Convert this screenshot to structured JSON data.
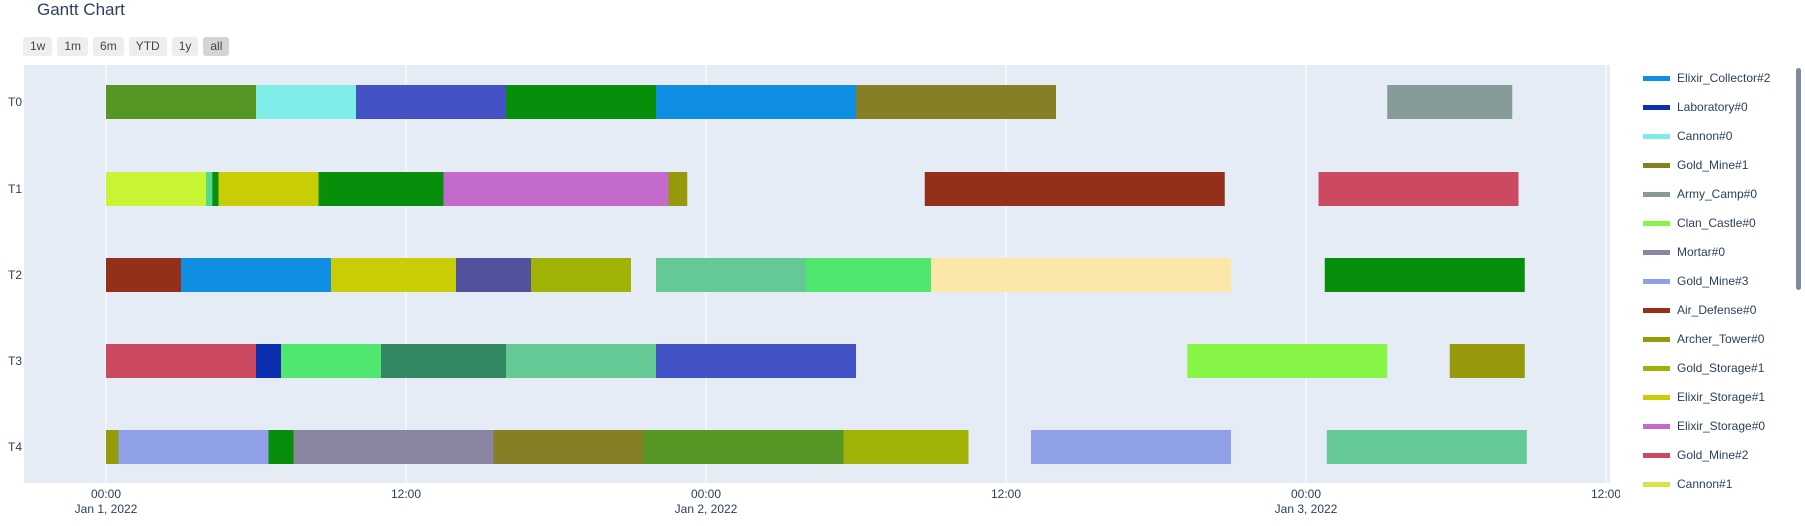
{
  "title": "Gantt Chart",
  "range_buttons": [
    {
      "label": "1w",
      "active": false
    },
    {
      "label": "1m",
      "active": false
    },
    {
      "label": "6m",
      "active": false
    },
    {
      "label": "YTD",
      "active": false
    },
    {
      "label": "1y",
      "active": false
    },
    {
      "label": "all",
      "active": true
    }
  ],
  "chart_data": {
    "type": "gantt",
    "title": "Gantt Chart",
    "x_range": [
      "2022-01-01T00:00",
      "2022-01-03T12:00"
    ],
    "x_ticks": [
      {
        "value": "2022-01-01T00:00",
        "label": "00:00",
        "sublabel": "Jan 1, 2022"
      },
      {
        "value": "2022-01-01T12:00",
        "label": "12:00",
        "sublabel": ""
      },
      {
        "value": "2022-01-02T00:00",
        "label": "00:00",
        "sublabel": "Jan 2, 2022"
      },
      {
        "value": "2022-01-02T12:00",
        "label": "12:00",
        "sublabel": ""
      },
      {
        "value": "2022-01-03T00:00",
        "label": "00:00",
        "sublabel": "Jan 3, 2022"
      },
      {
        "value": "2022-01-03T12:00",
        "label": "12:00",
        "sublabel": ""
      }
    ],
    "y_categories": [
      "T0",
      "T1",
      "T2",
      "T3",
      "T4"
    ],
    "background": "#e5ecf6",
    "legend_position": "right",
    "legend": [
      {
        "name": "Elixir_Collector#2",
        "color": "#0f8fe3"
      },
      {
        "name": "Laboratory#0",
        "color": "#0c2eb0"
      },
      {
        "name": "Cannon#0",
        "color": "#7eece7"
      },
      {
        "name": "Gold_Mine#1",
        "color": "#857f25"
      },
      {
        "name": "Army_Camp#0",
        "color": "#869a98"
      },
      {
        "name": "Clan_Castle#0",
        "color": "#87f546"
      },
      {
        "name": "Mortar#0",
        "color": "#8a85a0"
      },
      {
        "name": "Gold_Mine#3",
        "color": "#8f9fe8"
      },
      {
        "name": "Air_Defense#0",
        "color": "#942f1a"
      },
      {
        "name": "Archer_Tower#0",
        "color": "#969a0a"
      },
      {
        "name": "Gold_Storage#1",
        "color": "#a0b206"
      },
      {
        "name": "Elixir_Storage#1",
        "color": "#c8cd06"
      },
      {
        "name": "Elixir_Storage#0",
        "color": "#c46acc"
      },
      {
        "name": "Gold_Mine#2",
        "color": "#cb4a62"
      },
      {
        "name": "Cannon#1",
        "color": "#d7e44a"
      }
    ],
    "tasks": [
      {
        "row": "T0",
        "start": "2022-01-01T00:00",
        "end": "2022-01-01T06:00",
        "color": "#559625"
      },
      {
        "row": "T0",
        "start": "2022-01-01T06:00",
        "end": "2022-01-01T10:00",
        "color": "#7eece7"
      },
      {
        "row": "T0",
        "start": "2022-01-01T10:00",
        "end": "2022-01-01T16:00",
        "color": "#4353c6"
      },
      {
        "row": "T0",
        "start": "2022-01-01T16:00",
        "end": "2022-01-01T22:00",
        "color": "#078e0b"
      },
      {
        "row": "T0",
        "start": "2022-01-01T22:00",
        "end": "2022-01-02T06:00",
        "color": "#0f8fe3"
      },
      {
        "row": "T0",
        "start": "2022-01-02T06:00",
        "end": "2022-01-02T14:00",
        "color": "#857f25"
      },
      {
        "row": "T0",
        "start": "2022-01-03T03:15",
        "end": "2022-01-03T08:15",
        "color": "#869a98"
      },
      {
        "row": "T1",
        "start": "2022-01-01T00:00",
        "end": "2022-01-01T04:00",
        "color": "#c8f533"
      },
      {
        "row": "T1",
        "start": "2022-01-01T04:00",
        "end": "2022-01-01T04:15",
        "color": "#55d98c"
      },
      {
        "row": "T1",
        "start": "2022-01-01T04:15",
        "end": "2022-01-01T04:30",
        "color": "#078e0b"
      },
      {
        "row": "T1",
        "start": "2022-01-01T04:30",
        "end": "2022-01-01T08:30",
        "color": "#c8cd06"
      },
      {
        "row": "T1",
        "start": "2022-01-01T08:30",
        "end": "2022-01-01T13:30",
        "color": "#078e0b"
      },
      {
        "row": "T1",
        "start": "2022-01-01T13:30",
        "end": "2022-01-01T22:30",
        "color": "#c46acc"
      },
      {
        "row": "T1",
        "start": "2022-01-01T22:30",
        "end": "2022-01-01T23:15",
        "color": "#969a0a"
      },
      {
        "row": "T1",
        "start": "2022-01-02T08:45",
        "end": "2022-01-02T20:45",
        "color": "#942f1a"
      },
      {
        "row": "T1",
        "start": "2022-01-03T00:30",
        "end": "2022-01-03T08:30",
        "color": "#cb4a62"
      },
      {
        "row": "T2",
        "start": "2022-01-01T00:00",
        "end": "2022-01-01T03:00",
        "color": "#942f1a"
      },
      {
        "row": "T2",
        "start": "2022-01-01T03:00",
        "end": "2022-01-01T09:00",
        "color": "#0f8fe3"
      },
      {
        "row": "T2",
        "start": "2022-01-01T09:00",
        "end": "2022-01-01T14:00",
        "color": "#c8cd06"
      },
      {
        "row": "T2",
        "start": "2022-01-01T14:00",
        "end": "2022-01-01T17:00",
        "color": "#51519d"
      },
      {
        "row": "T2",
        "start": "2022-01-01T17:00",
        "end": "2022-01-01T21:00",
        "color": "#a0b206"
      },
      {
        "row": "T2",
        "start": "2022-01-01T22:00",
        "end": "2022-01-02T04:00",
        "color": "#64c995"
      },
      {
        "row": "T2",
        "start": "2022-01-02T04:00",
        "end": "2022-01-02T09:00",
        "color": "#4fe770"
      },
      {
        "row": "T2",
        "start": "2022-01-02T09:00",
        "end": "2022-01-02T21:00",
        "color": "#fce7ab"
      },
      {
        "row": "T2",
        "start": "2022-01-03T00:45",
        "end": "2022-01-03T08:45",
        "color": "#078e0b"
      },
      {
        "row": "T3",
        "start": "2022-01-01T00:00",
        "end": "2022-01-01T06:00",
        "color": "#cb4a62"
      },
      {
        "row": "T3",
        "start": "2022-01-01T06:00",
        "end": "2022-01-01T07:00",
        "color": "#0c2eb0"
      },
      {
        "row": "T3",
        "start": "2022-01-01T07:00",
        "end": "2022-01-01T11:00",
        "color": "#4fe770"
      },
      {
        "row": "T3",
        "start": "2022-01-01T11:00",
        "end": "2022-01-01T16:00",
        "color": "#318863"
      },
      {
        "row": "T3",
        "start": "2022-01-01T16:00",
        "end": "2022-01-01T22:00",
        "color": "#64c995"
      },
      {
        "row": "T3",
        "start": "2022-01-01T22:00",
        "end": "2022-01-02T06:00",
        "color": "#4353c6"
      },
      {
        "row": "T3",
        "start": "2022-01-02T19:15",
        "end": "2022-01-03T03:15",
        "color": "#87f546"
      },
      {
        "row": "T3",
        "start": "2022-01-03T05:45",
        "end": "2022-01-03T08:45",
        "color": "#969a0a"
      },
      {
        "row": "T4",
        "start": "2022-01-01T00:00",
        "end": "2022-01-01T00:30",
        "color": "#969a0a"
      },
      {
        "row": "T4",
        "start": "2022-01-01T00:30",
        "end": "2022-01-01T06:30",
        "color": "#8f9fe8"
      },
      {
        "row": "T4",
        "start": "2022-01-01T06:30",
        "end": "2022-01-01T07:30",
        "color": "#078e0b"
      },
      {
        "row": "T4",
        "start": "2022-01-01T07:30",
        "end": "2022-01-01T15:30",
        "color": "#8a85a0"
      },
      {
        "row": "T4",
        "start": "2022-01-01T15:30",
        "end": "2022-01-01T21:30",
        "color": "#857f25"
      },
      {
        "row": "T4",
        "start": "2022-01-01T21:30",
        "end": "2022-01-02T05:30",
        "color": "#559625"
      },
      {
        "row": "T4",
        "start": "2022-01-02T05:30",
        "end": "2022-01-02T10:30",
        "color": "#a0b206"
      },
      {
        "row": "T4",
        "start": "2022-01-02T13:00",
        "end": "2022-01-02T21:00",
        "color": "#8f9fe8"
      },
      {
        "row": "T4",
        "start": "2022-01-03T00:50",
        "end": "2022-01-03T08:50",
        "color": "#64c995"
      }
    ]
  }
}
